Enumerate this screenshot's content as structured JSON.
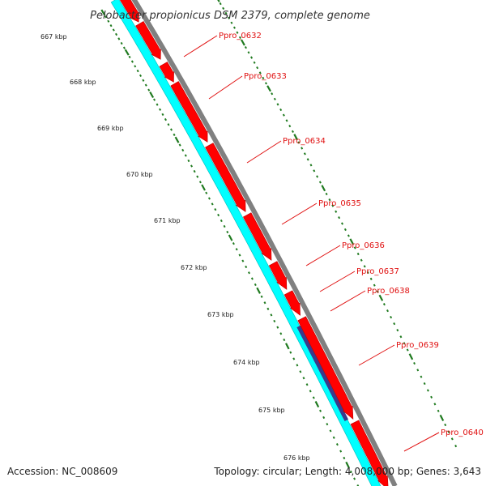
{
  "map": {
    "title": "Pelobacter propionicus DSM 2379, complete genome",
    "accession_label": "Accession: NC_008609",
    "summary_label": "Topology: circular; Length: 4,008,000 bp; Genes: 3,643",
    "colors": {
      "backbone": "#808080",
      "cds": "#ff0000",
      "cds_edge": "#b80000",
      "gc_track": "#00ffff",
      "gc_track_edge": "#00b8b8",
      "gc_low": "#3a3a8c",
      "tick": "#1f7a1f",
      "gene_label": "#e01010"
    },
    "ticks": [
      "667 kbp",
      "668 kbp",
      "669 kbp",
      "670 kbp",
      "671 kbp",
      "672 kbp",
      "673 kbp",
      "674 kbp",
      "675 kbp",
      "676 kbp"
    ],
    "genes": [
      "Ppro_0632",
      "Ppro_0633",
      "Ppro_0634",
      "Ppro_0635",
      "Ppro_0636",
      "Ppro_0637",
      "Ppro_0638",
      "Ppro_0639",
      "Ppro_0640"
    ]
  }
}
